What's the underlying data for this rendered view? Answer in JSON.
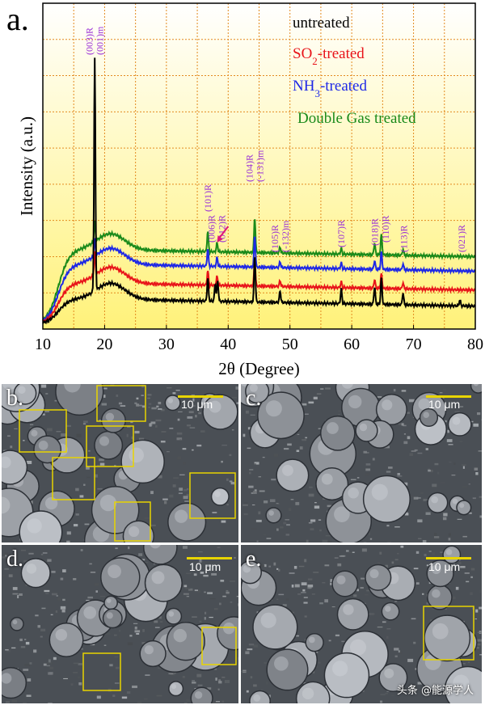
{
  "panel_a_letter": "a.",
  "panels": [
    {
      "letter": "b.",
      "scale": "10 μm",
      "boxes": 7
    },
    {
      "letter": "c.",
      "scale": "10 μm",
      "boxes": 0
    },
    {
      "letter": "d.",
      "scale": "10 μm",
      "boxes": 2
    },
    {
      "letter": "e.",
      "scale": "10 μm",
      "boxes": 1
    }
  ],
  "watermark": "头条 @能源学人",
  "colors": {
    "untreated": "#000000",
    "so2": "#e8141a",
    "nh3": "#1e28e6",
    "double": "#1a8a1a",
    "peak_label": "#9a2fd6",
    "grid": "#e38a1f",
    "bg_top": "#ffffff",
    "bg_bottom": "#fff27a",
    "box": "#e8d400"
  },
  "chart_data": {
    "type": "line",
    "title": "",
    "xlabel": "2θ (Degree)",
    "ylabel": "Intensity (a.u.)",
    "xlim": [
      10,
      80
    ],
    "xticks": [
      "10",
      "20",
      "30",
      "40",
      "50",
      "60",
      "70",
      "80"
    ],
    "grid": true,
    "legend": "top-right",
    "series": [
      {
        "name": "untreated",
        "color": "#000000",
        "baseline": 0.0,
        "peaks": [
          [
            18.4,
            8.0
          ],
          [
            36.7,
            0.8
          ],
          [
            37.9,
            0.6
          ],
          [
            38.3,
            0.7
          ],
          [
            44.3,
            1.6
          ],
          [
            48.4,
            0.4
          ],
          [
            58.3,
            0.5
          ],
          [
            63.7,
            0.6
          ],
          [
            64.8,
            0.9
          ],
          [
            68.3,
            0.4
          ],
          [
            77.5,
            0.2
          ]
        ]
      },
      {
        "name": "SO₂-treated",
        "color": "#e8141a",
        "baseline": 0.55,
        "peaks": [
          [
            18.4,
            0.8
          ],
          [
            36.7,
            0.5
          ],
          [
            38.2,
            0.3
          ],
          [
            44.3,
            0.9
          ],
          [
            48.4,
            0.2
          ],
          [
            58.3,
            0.2
          ],
          [
            63.7,
            0.3
          ],
          [
            64.8,
            0.5
          ],
          [
            68.3,
            0.2
          ]
        ]
      },
      {
        "name": "NH₃-treated",
        "color": "#1e28e6",
        "baseline": 1.2,
        "peaks": [
          [
            18.4,
            0.6
          ],
          [
            36.7,
            0.6
          ],
          [
            38.2,
            0.3
          ],
          [
            44.3,
            1.1
          ],
          [
            48.4,
            0.2
          ],
          [
            58.3,
            0.2
          ],
          [
            63.7,
            0.3
          ],
          [
            64.8,
            0.6
          ],
          [
            68.3,
            0.2
          ]
        ]
      },
      {
        "name": "Double Gas treated",
        "color": "#1a8a1a",
        "baseline": 1.7,
        "peaks": [
          [
            18.4,
            0.7
          ],
          [
            36.7,
            0.7
          ],
          [
            38.2,
            0.3
          ],
          [
            44.3,
            1.2
          ],
          [
            48.4,
            0.2
          ],
          [
            58.3,
            0.2
          ],
          [
            63.7,
            0.4
          ],
          [
            64.8,
            0.7
          ],
          [
            68.3,
            0.2
          ]
        ]
      }
    ],
    "annotations": [
      {
        "x": 18.4,
        "lines": [
          "(003)R",
          "(001)m"
        ]
      },
      {
        "x": 36.7,
        "lines": [
          "(101)R"
        ]
      },
      {
        "x": 38.1,
        "lines": [
          "(006)R",
          "(012)R"
        ]
      },
      {
        "x": 44.3,
        "lines": [
          "(104)R",
          "(-131)m"
        ]
      },
      {
        "x": 48.4,
        "lines": [
          "(105)R",
          "(-132)m"
        ]
      },
      {
        "x": 58.3,
        "lines": [
          "(107)R"
        ]
      },
      {
        "x": 63.7,
        "lines": [
          "(018)R"
        ]
      },
      {
        "x": 65.5,
        "lines": [
          "(110)R"
        ]
      },
      {
        "x": 68.4,
        "lines": [
          "(113)R"
        ]
      },
      {
        "x": 77.8,
        "lines": [
          "(021)R"
        ]
      }
    ]
  }
}
